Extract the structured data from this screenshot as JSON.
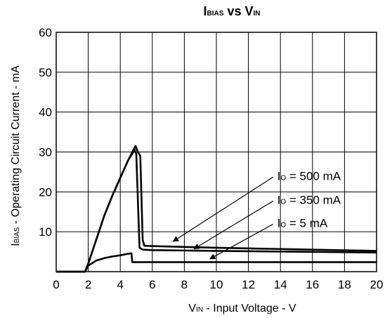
{
  "chart_data": {
    "type": "line",
    "title_main_1": "I",
    "title_sub_1": "BIAS",
    "title_mid": " vs ",
    "title_main_2": "V",
    "title_sub_2": "IN",
    "xlabel_main": "V",
    "xlabel_sub": "IN",
    "xlabel_rest": " - Input Voltage - V",
    "ylabel_main": "I",
    "ylabel_sub": "BIAS",
    "ylabel_rest": " - Operating Circuit Current - mA",
    "xlim": [
      0,
      20
    ],
    "ylim": [
      0,
      60
    ],
    "xticks": [
      "0",
      "2",
      "4",
      "6",
      "8",
      "10",
      "12",
      "14",
      "16",
      "18",
      "20"
    ],
    "yticks": [
      "10",
      "20",
      "30",
      "40",
      "50",
      "60"
    ],
    "grid": true,
    "series": [
      {
        "name": "IO = 500 mA",
        "label_main": "I",
        "label_sub": "O",
        "label_rest": " = 500 mA",
        "points": [
          [
            0,
            0
          ],
          [
            1.8,
            0
          ],
          [
            2.0,
            2.0
          ],
          [
            2.5,
            8
          ],
          [
            3,
            14
          ],
          [
            3.5,
            19
          ],
          [
            4,
            23.5
          ],
          [
            4.5,
            28
          ],
          [
            4.95,
            31.5
          ],
          [
            5.1,
            30
          ],
          [
            5.25,
            29
          ],
          [
            5.4,
            8
          ],
          [
            5.5,
            6.5
          ],
          [
            6,
            6.4
          ],
          [
            10,
            6.0
          ],
          [
            15,
            5.6
          ],
          [
            20,
            5.2
          ]
        ]
      },
      {
        "name": "IO = 350 mA",
        "label_main": "I",
        "label_sub": "O",
        "label_rest": " = 350 mA",
        "points": [
          [
            0,
            0
          ],
          [
            1.8,
            0
          ],
          [
            2.0,
            2.0
          ],
          [
            2.5,
            8
          ],
          [
            3,
            14
          ],
          [
            3.5,
            19
          ],
          [
            4,
            23.5
          ],
          [
            4.5,
            28
          ],
          [
            4.9,
            30.5
          ],
          [
            5.0,
            29.5
          ],
          [
            5.2,
            6
          ],
          [
            5.4,
            5.5
          ],
          [
            6,
            5.4
          ],
          [
            10,
            5.2
          ],
          [
            15,
            5.0
          ],
          [
            20,
            4.8
          ]
        ]
      },
      {
        "name": "IO = 5 mA",
        "label_main": "I",
        "label_sub": "O",
        "label_rest": " = 5 mA",
        "points": [
          [
            0,
            0
          ],
          [
            1.8,
            0
          ],
          [
            2.0,
            1.5
          ],
          [
            2.5,
            2.8
          ],
          [
            3,
            3.4
          ],
          [
            3.5,
            3.8
          ],
          [
            4,
            4.1
          ],
          [
            4.5,
            4.5
          ],
          [
            4.7,
            4.6
          ],
          [
            4.75,
            2.4
          ],
          [
            6,
            2.4
          ],
          [
            10,
            2.4
          ],
          [
            15,
            2.4
          ],
          [
            20,
            2.4
          ]
        ]
      }
    ],
    "legend_placement": "inside right, labels with leader arrows"
  }
}
